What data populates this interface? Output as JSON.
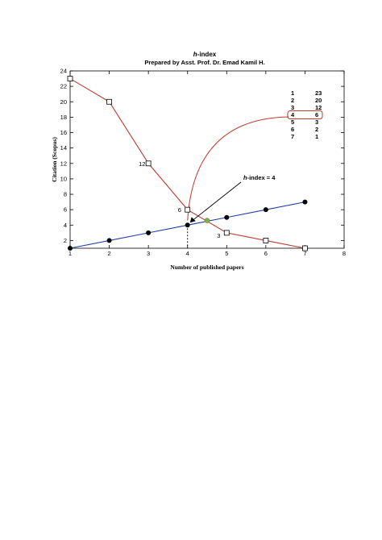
{
  "chart_data": {
    "type": "line",
    "title_italic": "h",
    "title_rest": "-index",
    "subtitle": "Prepared by Asst. Prof. Dr. Emad Kamil H.",
    "xlabel": "Number of published papers",
    "ylabel": "Citation (Scopus)",
    "xlim": [
      1,
      8
    ],
    "ylim": [
      1,
      24
    ],
    "x_ticks": [
      "1",
      "2",
      "3",
      "4",
      "5",
      "6",
      "7",
      "8"
    ],
    "y_ticks": [
      "2",
      "4",
      "6",
      "8",
      "10",
      "12",
      "14",
      "16",
      "18",
      "20",
      "22",
      "24"
    ],
    "grid": false,
    "series": [
      {
        "marker": "open-square",
        "color": "#c0392b",
        "x": [
          1,
          2,
          3,
          4,
          5,
          6,
          7
        ],
        "y": [
          23,
          20,
          12,
          6,
          3,
          2,
          1
        ]
      },
      {
        "marker": "filled-circle",
        "color": "#1f3fa8",
        "x": [
          1,
          2,
          3,
          4,
          5,
          6,
          7
        ],
        "y": [
          1,
          2,
          3,
          4,
          5,
          6,
          7
        ]
      }
    ],
    "intersection": {
      "x": 4.5,
      "y": 4.6,
      "color": "#7cb342"
    },
    "point_labels": [
      {
        "text": "12",
        "x": 3,
        "y": 12
      },
      {
        "text": "6",
        "x": 4,
        "y": 6
      },
      {
        "text": "3",
        "x": 5,
        "y": 3
      }
    ],
    "annotation": {
      "italic": "h",
      "rest": "-index = 4",
      "target_x": 4,
      "target_y": 4
    },
    "table": {
      "rows": [
        [
          "1",
          "23"
        ],
        [
          "2",
          "20"
        ],
        [
          "3",
          "12"
        ],
        [
          "4",
          "6"
        ],
        [
          "5",
          "3"
        ],
        [
          "6",
          "2"
        ],
        [
          "7",
          "1"
        ]
      ],
      "highlight_row": 3
    }
  }
}
